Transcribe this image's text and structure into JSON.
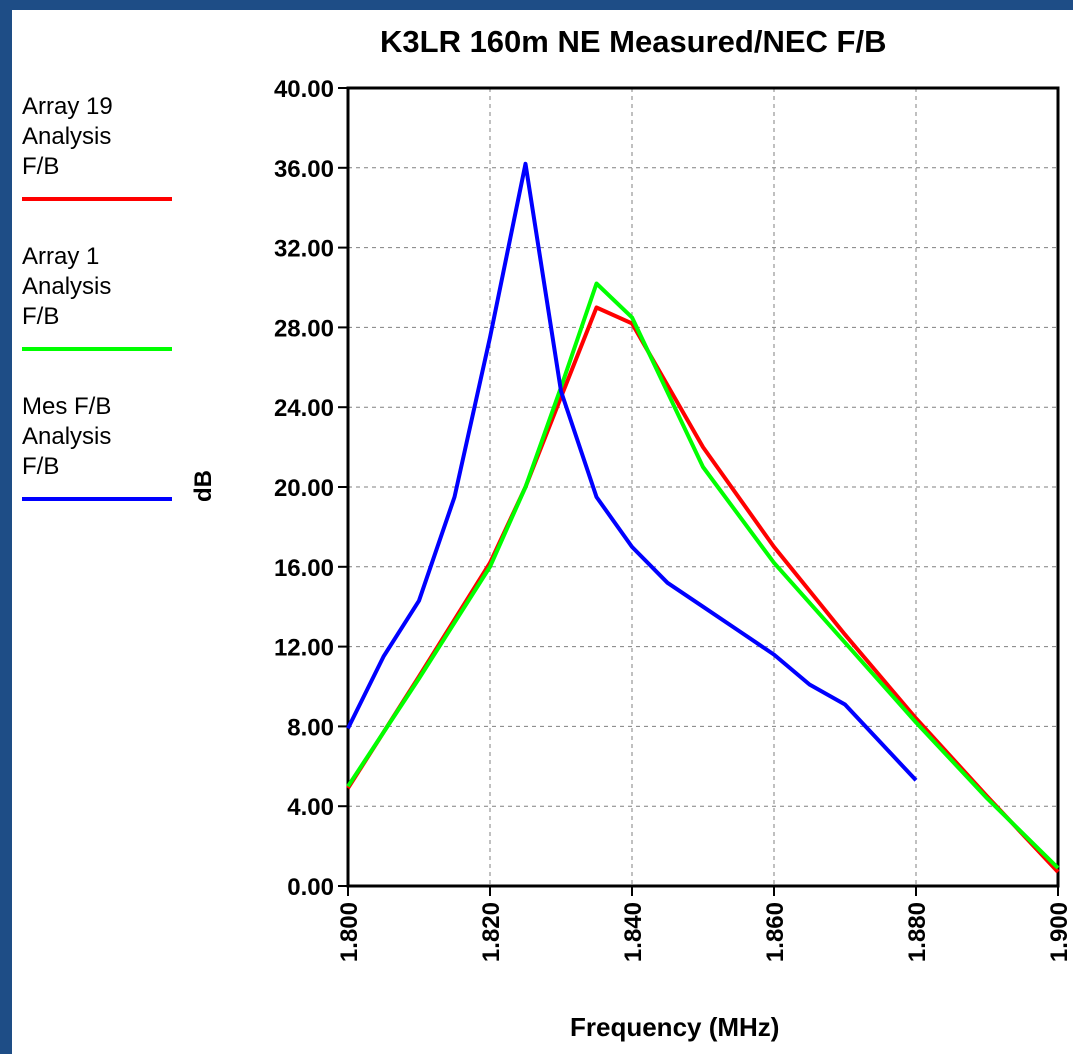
{
  "chart_data": {
    "type": "line",
    "title": "K3LR 160m NE Measured/NEC F/B",
    "xlabel": "Frequency (MHz)",
    "ylabel": "dB",
    "xlim": [
      1.8,
      1.9
    ],
    "ylim": [
      0,
      40
    ],
    "x_ticks": [
      "1.800",
      "1.820",
      "1.840",
      "1.860",
      "1.880",
      "1.900"
    ],
    "y_ticks": [
      "0.00",
      "4.00",
      "8.00",
      "12.00",
      "16.00",
      "20.00",
      "24.00",
      "28.00",
      "32.00",
      "36.00",
      "40.00"
    ],
    "grid": true,
    "legend_position": "left",
    "series": [
      {
        "name": "Array 19 Analysis F/B",
        "legend_lines": [
          "Array 19",
          "Analysis",
          "F/B"
        ],
        "color": "#ff0000",
        "x": [
          1.8,
          1.81,
          1.82,
          1.825,
          1.83,
          1.835,
          1.84,
          1.85,
          1.86,
          1.87,
          1.88,
          1.89,
          1.9
        ],
        "y": [
          4.9,
          10.5,
          16.2,
          20.0,
          24.5,
          29.0,
          28.2,
          22.0,
          17.0,
          12.6,
          8.4,
          4.5,
          0.7
        ]
      },
      {
        "name": "Array 1 Analysis F/B",
        "legend_lines": [
          "Array 1",
          "Analysis",
          "F/B"
        ],
        "color": "#00ff00",
        "x": [
          1.8,
          1.81,
          1.82,
          1.825,
          1.83,
          1.835,
          1.84,
          1.85,
          1.86,
          1.87,
          1.88,
          1.89,
          1.9
        ],
        "y": [
          5.0,
          10.4,
          16.0,
          20.0,
          25.0,
          30.2,
          28.5,
          21.0,
          16.2,
          12.2,
          8.2,
          4.4,
          0.9
        ]
      },
      {
        "name": "Mes F/B Analysis F/B",
        "legend_lines": [
          "Mes F/B",
          "Analysis",
          "F/B"
        ],
        "color": "#0000ff",
        "x": [
          1.8,
          1.805,
          1.81,
          1.815,
          1.82,
          1.825,
          1.83,
          1.835,
          1.84,
          1.845,
          1.85,
          1.855,
          1.86,
          1.865,
          1.87,
          1.875,
          1.88
        ],
        "y": [
          7.9,
          11.5,
          14.3,
          19.5,
          27.5,
          36.2,
          24.8,
          19.5,
          17.0,
          15.2,
          14.0,
          12.8,
          11.6,
          10.1,
          9.1,
          7.2,
          5.3
        ]
      }
    ]
  }
}
